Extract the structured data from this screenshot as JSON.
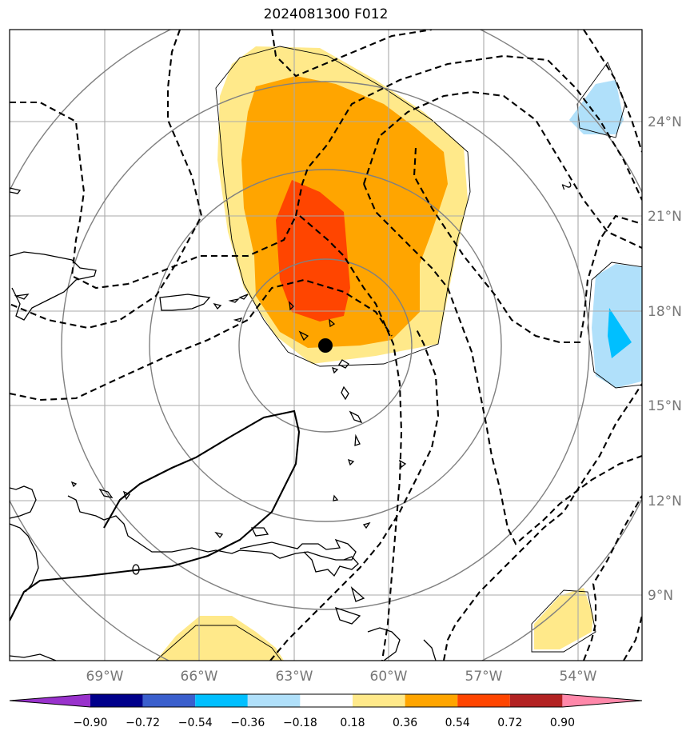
{
  "title": "2024081300 F012",
  "lon_labels": [
    "69°W",
    "66°W",
    "63°W",
    "60°W",
    "57°W",
    "54°W"
  ],
  "lat_labels": [
    "24°N",
    "21°N",
    "18°N",
    "15°N",
    "12°N",
    "9°N"
  ],
  "contour_label": "2",
  "colorbar": {
    "colors": [
      "#9932cc",
      "#00008b",
      "#3a5fcd",
      "#00bfff",
      "#b0e0fa",
      "#ffffff",
      "#ffe98a",
      "#ffa500",
      "#ff4500",
      "#b22222",
      "#ff88aa"
    ],
    "tick_labels": [
      "−0.90",
      "−0.72",
      "−0.54",
      "−0.36",
      "−0.18",
      "0.18",
      "0.36",
      "0.54",
      "0.72",
      "0.90"
    ]
  }
}
